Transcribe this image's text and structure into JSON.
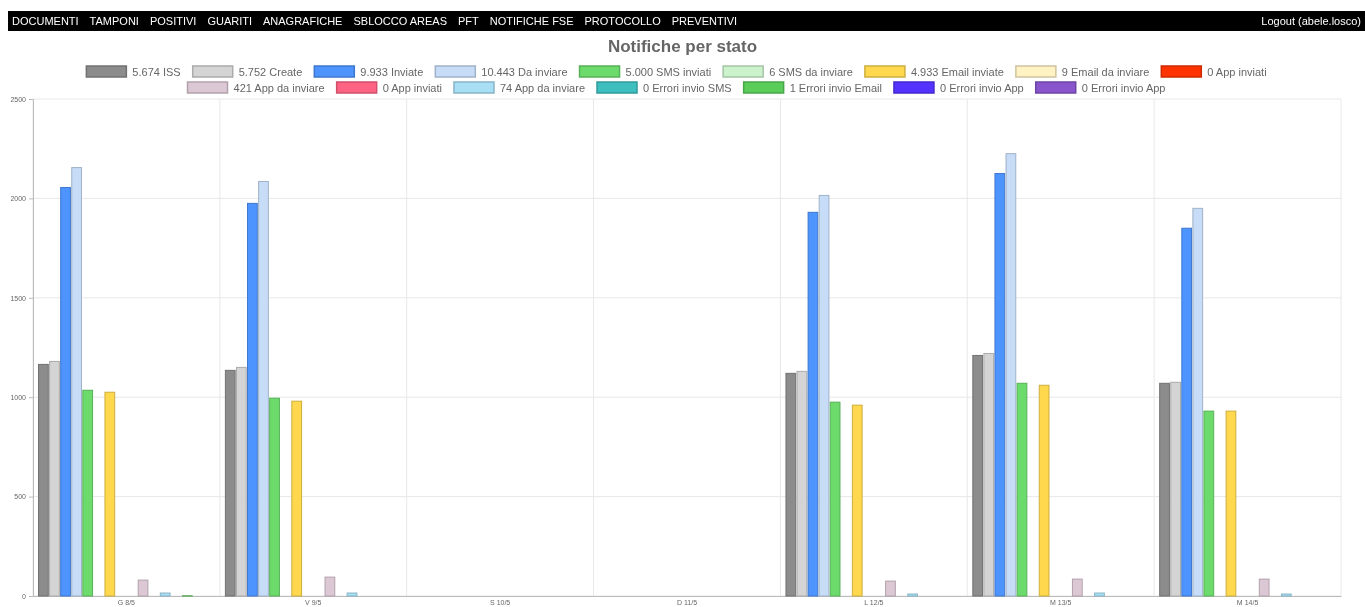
{
  "chart_data": {
    "type": "bar",
    "title": "Notifiche per stato",
    "annotations": [
      "DOCUMENTI",
      "TAMPONI",
      "POSITIVI",
      "GUARITI",
      "ANAGRAFICHE",
      "SBLOCCO AREAS",
      "PFT",
      "NOTIFICHE FSE",
      "PROTOCOLLO",
      "PREVENTIVI",
      "Logout (abele.losco)"
    ],
    "categories": [
      "G 8/5",
      "V 9/5",
      "S 10/5",
      "D 11/5",
      "L 12/5",
      "M 13/5",
      "M 14/5"
    ],
    "series": [
      {
        "name": "5.674 ISS",
        "color": "#8c8c8c",
        "values": [
          1165,
          1135,
          0,
          0,
          1120,
          1210,
          1070
        ]
      },
      {
        "name": "5.752 Create",
        "color": "#d4d4d4",
        "values": [
          1180,
          1150,
          0,
          0,
          1130,
          1220,
          1075
        ]
      },
      {
        "name": "9.933 Inviate",
        "color": "#4d94ff",
        "values": [
          2055,
          1975,
          0,
          0,
          1930,
          2125,
          1850
        ]
      },
      {
        "name": "10.443 Da inviare",
        "color": "#c6dcf7",
        "values": [
          2155,
          2085,
          0,
          0,
          2015,
          2225,
          1950
        ]
      },
      {
        "name": "5.000 SMS inviati",
        "color": "#6cdb6c",
        "values": [
          1035,
          995,
          0,
          0,
          975,
          1070,
          930
        ]
      },
      {
        "name": "6 SMS da inviare",
        "color": "#ccf2cc",
        "values": [
          null,
          null,
          null,
          null,
          null,
          null,
          null
        ]
      },
      {
        "name": "4.933 Email inviate",
        "color": "#ffd84d",
        "values": [
          1025,
          980,
          0,
          0,
          960,
          1060,
          930
        ]
      },
      {
        "name": "9 Email da inviare",
        "color": "#fff3c4",
        "values": [
          null,
          null,
          null,
          null,
          null,
          null,
          null
        ]
      },
      {
        "name": "0 App inviati",
        "color": "#ff3300",
        "values": [
          0,
          0,
          0,
          0,
          0,
          0,
          0
        ]
      },
      {
        "name": "421 App da inviare",
        "color": "#dcc8d4",
        "values": [
          80,
          95,
          0,
          0,
          75,
          85,
          85
        ]
      },
      {
        "name": "0 App inviati",
        "color": "#ff6384",
        "values": [
          0,
          0,
          0,
          0,
          0,
          0,
          0
        ]
      },
      {
        "name": "74 App da inviare",
        "color": "#a8dff5",
        "values": [
          15,
          15,
          0,
          0,
          10,
          15,
          10
        ]
      },
      {
        "name": "0 Errori invio SMS",
        "color": "#3dbfbf",
        "values": [
          0,
          0,
          0,
          0,
          0,
          0,
          0
        ]
      },
      {
        "name": "1 Errori invio Email",
        "color": "#5acc5a",
        "values": [
          1,
          0,
          0,
          0,
          0,
          0,
          0
        ]
      },
      {
        "name": "0 Errori invio App",
        "color": "#5533ff",
        "values": [
          0,
          0,
          0,
          0,
          0,
          0,
          0
        ]
      },
      {
        "name": "0 Errori invio App",
        "color": "#8855cc",
        "values": [
          0,
          0,
          0,
          0,
          0,
          0,
          0
        ]
      }
    ],
    "ylim": [
      0,
      2500
    ],
    "yticks": [
      0,
      500,
      1000,
      1500,
      2000,
      2500
    ],
    "grid": true,
    "legend": "top"
  }
}
